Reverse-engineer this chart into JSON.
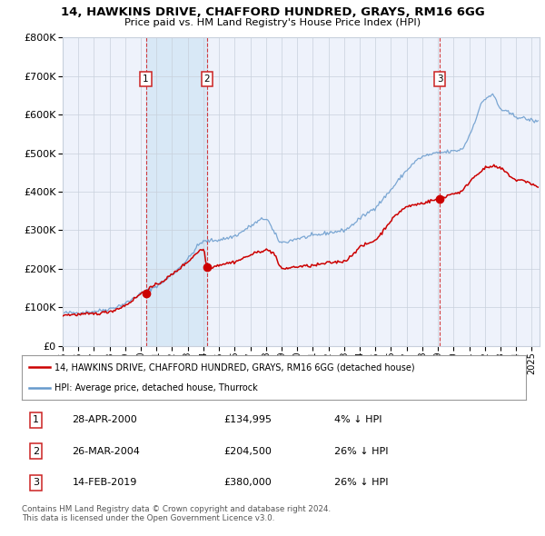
{
  "title1": "14, HAWKINS DRIVE, CHAFFORD HUNDRED, GRAYS, RM16 6GG",
  "title2": "Price paid vs. HM Land Registry's House Price Index (HPI)",
  "legend_red": "14, HAWKINS DRIVE, CHAFFORD HUNDRED, GRAYS, RM16 6GG (detached house)",
  "legend_blue": "HPI: Average price, detached house, Thurrock",
  "transactions": [
    {
      "num": 1,
      "date": "28-APR-2000",
      "price": 134995,
      "price_str": "£134,995",
      "pct": "4%",
      "dir": "↓",
      "x_year": 2000.32
    },
    {
      "num": 2,
      "date": "26-MAR-2004",
      "price": 204500,
      "price_str": "£204,500",
      "pct": "26%",
      "dir": "↓",
      "x_year": 2004.23
    },
    {
      "num": 3,
      "date": "14-FEB-2019",
      "price": 380000,
      "price_str": "£380,000",
      "pct": "26%",
      "dir": "↓",
      "x_year": 2019.12
    }
  ],
  "footer1": "Contains HM Land Registry data © Crown copyright and database right 2024.",
  "footer2": "This data is licensed under the Open Government Licence v3.0.",
  "ylim": [
    0,
    800000
  ],
  "yticks": [
    0,
    100000,
    200000,
    300000,
    400000,
    500000,
    600000,
    700000,
    800000
  ],
  "xlim": [
    1995.0,
    2025.5
  ],
  "chart_bg": "#eef2fb",
  "plot_bg": "#ffffff",
  "red_color": "#cc0000",
  "blue_color": "#6699cc",
  "shade_color": "#d8e8f6",
  "grid_color": "#c8d0dc",
  "box_edge_color": "#cc2222"
}
